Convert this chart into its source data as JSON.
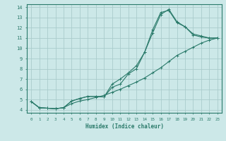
{
  "xlabel": "Humidex (Indice chaleur)",
  "bg_color": "#cce8e8",
  "grid_color": "#aacccc",
  "line_color": "#2a7a6a",
  "xlim": [
    -0.5,
    23.5
  ],
  "ylim": [
    3.7,
    14.3
  ],
  "xticks": [
    0,
    1,
    2,
    3,
    4,
    5,
    6,
    7,
    8,
    9,
    10,
    11,
    12,
    13,
    14,
    15,
    16,
    17,
    18,
    19,
    20,
    21,
    22,
    23
  ],
  "yticks": [
    4,
    5,
    6,
    7,
    8,
    9,
    10,
    11,
    12,
    13,
    14
  ],
  "curve1_x": [
    0,
    1,
    2,
    3,
    4,
    5,
    6,
    7,
    8,
    9,
    10,
    11,
    12,
    13,
    14,
    15,
    16,
    17,
    18,
    19,
    20,
    21,
    22,
    23
  ],
  "curve1_y": [
    4.8,
    4.2,
    4.15,
    4.1,
    4.2,
    4.85,
    5.1,
    5.3,
    5.3,
    5.25,
    6.2,
    6.5,
    7.5,
    8.0,
    9.6,
    11.5,
    13.3,
    13.8,
    12.6,
    12.1,
    11.3,
    11.1,
    11.0,
    11.0
  ],
  "curve2_x": [
    0,
    1,
    2,
    3,
    4,
    5,
    6,
    7,
    8,
    9,
    10,
    11,
    12,
    13,
    14,
    15,
    16,
    17,
    18,
    19,
    20,
    21,
    22,
    23
  ],
  "curve2_y": [
    4.8,
    4.2,
    4.15,
    4.1,
    4.2,
    4.85,
    5.1,
    5.3,
    5.3,
    5.25,
    6.5,
    7.0,
    7.6,
    8.3,
    9.6,
    11.8,
    13.5,
    13.7,
    12.5,
    12.1,
    11.4,
    11.2,
    11.0,
    11.0
  ],
  "curve3_x": [
    0,
    1,
    2,
    3,
    4,
    5,
    6,
    7,
    8,
    9,
    10,
    11,
    12,
    13,
    14,
    15,
    16,
    17,
    18,
    19,
    20,
    21,
    22,
    23
  ],
  "curve3_y": [
    4.8,
    4.2,
    4.15,
    4.1,
    4.2,
    4.6,
    4.85,
    5.0,
    5.2,
    5.4,
    5.7,
    6.0,
    6.35,
    6.7,
    7.1,
    7.6,
    8.1,
    8.7,
    9.3,
    9.7,
    10.1,
    10.5,
    10.8,
    11.0
  ]
}
